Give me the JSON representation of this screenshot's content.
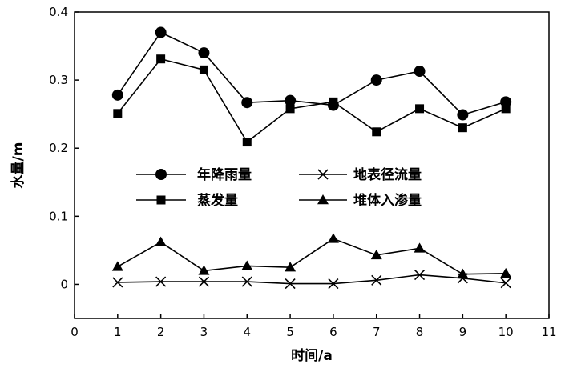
{
  "chart_data": {
    "type": "line",
    "xlabel": "时间/a",
    "ylabel": "水量/m",
    "xlim": [
      0,
      11
    ],
    "ylim": [
      -0.05,
      0.4
    ],
    "x_ticks": [
      0,
      1,
      2,
      3,
      4,
      5,
      6,
      7,
      8,
      9,
      10,
      11
    ],
    "y_ticks": [
      0,
      0.1,
      0.2,
      0.3,
      0.4
    ],
    "y_tick_labels": [
      "0",
      "0.1",
      "0.2",
      "0.3",
      "0.4"
    ],
    "grid": false,
    "legend_position": "center",
    "x": [
      1,
      2,
      3,
      4,
      5,
      6,
      7,
      8,
      9,
      10
    ],
    "series": [
      {
        "name": "年降雨量",
        "marker": "circle",
        "values": [
          0.278,
          0.37,
          0.34,
          0.267,
          0.27,
          0.263,
          0.3,
          0.313,
          0.249,
          0.268
        ]
      },
      {
        "name": "地表径流量",
        "marker": "x",
        "values": [
          0.003,
          0.004,
          0.004,
          0.004,
          0.001,
          0.001,
          0.006,
          0.014,
          0.009,
          0.002
        ]
      },
      {
        "name": "蒸发量",
        "marker": "square",
        "values": [
          0.251,
          0.331,
          0.315,
          0.209,
          0.258,
          0.268,
          0.224,
          0.258,
          0.23,
          0.258
        ]
      },
      {
        "name": "堆体入渗量",
        "marker": "triangle",
        "values": [
          0.026,
          0.062,
          0.02,
          0.027,
          0.025,
          0.067,
          0.043,
          0.053,
          0.015,
          0.016
        ]
      }
    ],
    "colors": {
      "line": "#000000"
    }
  }
}
